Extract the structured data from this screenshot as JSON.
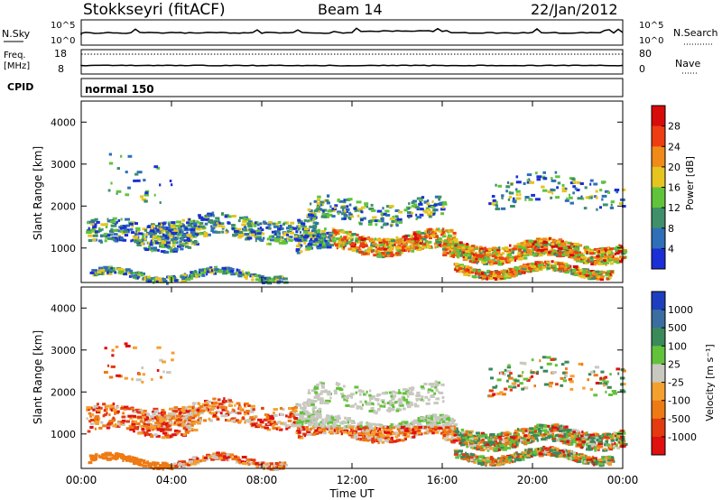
{
  "header": {
    "station": "Stokkseyri (fitACF)",
    "beam": "Beam 14",
    "date": "22/Jan/2012"
  },
  "nsky": {
    "label": "N.Sky",
    "tick_top": "10^5",
    "tick_bot": "10^0",
    "right_label": "N.Search"
  },
  "freq": {
    "label_line1": "Freq.",
    "label_line2": "[MHz]",
    "left_ticks": [
      "18",
      "8"
    ],
    "right_ticks": [
      "80",
      "0"
    ],
    "right_label": "Nave"
  },
  "cpid": {
    "label": "CPID",
    "mode": "normal 150"
  },
  "chart_data": [
    {
      "type": "heatmap",
      "name": "power-panel",
      "ylabel": "Slant Range [km]",
      "ylim": [
        180,
        4500
      ],
      "y_ticks": [
        "1000",
        "2000",
        "3000",
        "4000"
      ],
      "colorbar_label": "Power [dB]",
      "colorbar_ticks": [
        "4",
        "8",
        "12",
        "16",
        "20",
        "24",
        "28"
      ],
      "colorbar_range": [
        0,
        32
      ],
      "colors": [
        "#1a2fd6",
        "#2f6fb8",
        "#3f8f6a",
        "#5fc43a",
        "#e6c420",
        "#f08a18",
        "#ee3d12",
        "#d80b0b"
      ]
    },
    {
      "type": "heatmap",
      "name": "velocity-panel",
      "ylabel": "Slant Range [km]",
      "ylim": [
        180,
        4500
      ],
      "y_ticks": [
        "1000",
        "2000",
        "3000",
        "4000"
      ],
      "colorbar_label": "Velocity [m s⁻¹]",
      "colorbar_ticks": [
        "1000",
        "500",
        "100",
        "25",
        "-25",
        "-100",
        "-500",
        "-1000"
      ],
      "colors": [
        "#1d3fbf",
        "#3a6ea0",
        "#3a8a5a",
        "#63c23b",
        "#c8c8c0",
        "#f4a030",
        "#ee7a14",
        "#e43a10",
        "#e01010"
      ]
    }
  ],
  "time_axis": {
    "xlabel": "Time UT",
    "ticks": [
      "00:00",
      "04:00",
      "08:00",
      "12:00",
      "16:00",
      "20:00",
      "00:00"
    ],
    "range_hours": [
      0,
      24
    ]
  }
}
